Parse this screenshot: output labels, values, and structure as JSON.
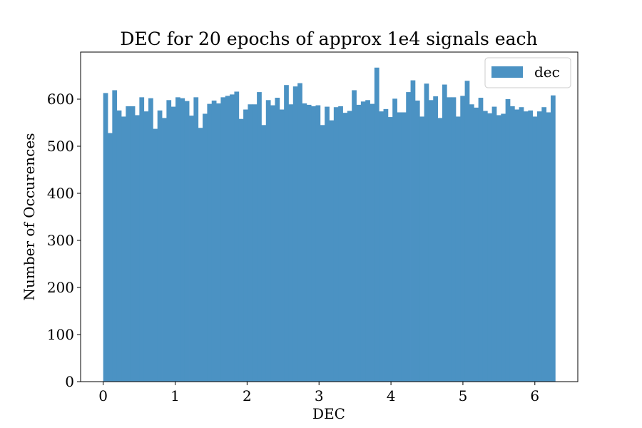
{
  "chart_data": {
    "type": "bar",
    "title": "DEC for 20 epochs of approx 1e4 signals each",
    "xlabel": "DEC",
    "ylabel": "Number of Occurences",
    "xlim": [
      -0.314,
      6.597
    ],
    "ylim": [
      0,
      700
    ],
    "x_ticks": [
      0,
      1,
      2,
      3,
      4,
      5,
      6
    ],
    "y_ticks": [
      0,
      100,
      200,
      300,
      400,
      500,
      600
    ],
    "legend": {
      "placement": "top-right",
      "entries": [
        "dec"
      ]
    },
    "grid": false,
    "bar_color": "#4b92c3",
    "bin_range": [
      0,
      6.283
    ],
    "values": [
      613,
      528,
      619,
      576,
      563,
      585,
      585,
      566,
      604,
      574,
      602,
      537,
      576,
      560,
      598,
      584,
      604,
      602,
      596,
      565,
      604,
      539,
      569,
      590,
      597,
      591,
      604,
      607,
      610,
      616,
      558,
      578,
      589,
      589,
      615,
      545,
      598,
      587,
      603,
      578,
      630,
      589,
      627,
      634,
      591,
      588,
      585,
      587,
      545,
      584,
      555,
      583,
      585,
      571,
      575,
      619,
      588,
      595,
      598,
      590,
      667,
      574,
      579,
      562,
      601,
      572,
      572,
      615,
      640,
      597,
      563,
      633,
      598,
      606,
      560,
      631,
      604,
      604,
      563,
      607,
      639,
      589,
      582,
      603,
      575,
      570,
      584,
      566,
      569,
      600,
      585,
      578,
      583,
      574,
      576,
      563,
      574,
      583,
      572,
      608
    ]
  }
}
